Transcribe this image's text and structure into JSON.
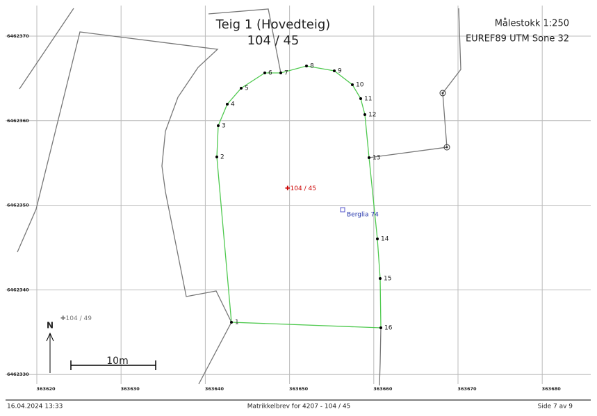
{
  "header": {
    "title": "Teig 1 (Hovedteig)",
    "subtitle": "104 / 45",
    "scale": "Målestokk 1:250",
    "crs": "EUREF89 UTM Sone 32"
  },
  "grid": {
    "x_labels": [
      "363620",
      "363630",
      "363640",
      "363650",
      "363660",
      "363670",
      "363680"
    ],
    "y_labels": [
      "6462370",
      "6462360",
      "6462350",
      "6462340",
      "6462330"
    ]
  },
  "parcel": {
    "label": "104 / 45",
    "address": "Berglia 74",
    "neighbor": "104 / 49",
    "points": [
      "1",
      "2",
      "3",
      "4",
      "5",
      "6",
      "7",
      "8",
      "9",
      "10",
      "11",
      "12",
      "13",
      "14",
      "15",
      "16"
    ]
  },
  "north": "N",
  "scalebar": "10m",
  "footer": {
    "date": "16.04.2024 13:33",
    "document": "Matrikkelbrev for 4207 - 104 / 45",
    "page": "Side 7 av 9"
  }
}
